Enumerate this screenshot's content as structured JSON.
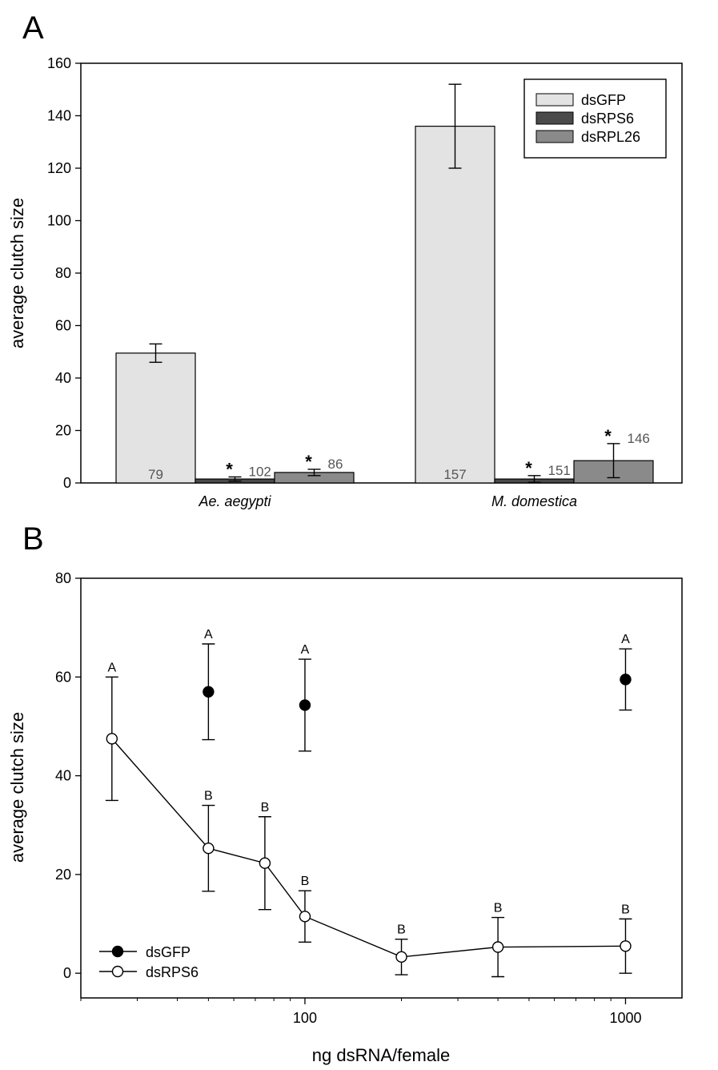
{
  "chart_data": [
    {
      "panel": "A",
      "type": "bar",
      "title": "",
      "xlabel": "",
      "ylabel": "average clutch size",
      "ylim": [
        0,
        160
      ],
      "yticks": [
        "0",
        "20",
        "40",
        "60",
        "80",
        "100",
        "120",
        "140",
        "160"
      ],
      "categories": [
        "Ae. aegypti",
        "M. domestica"
      ],
      "series": [
        {
          "name": "dsGFP",
          "color": "#e3e3e3",
          "values": [
            49.5,
            136
          ],
          "errors": [
            3.5,
            16
          ],
          "n": [
            "79",
            "157"
          ],
          "stars": [
            "",
            ""
          ]
        },
        {
          "name": "dsRPS6",
          "color": "#4a4a4a",
          "values": [
            1.5,
            1.5
          ],
          "errors": [
            0.8,
            1.3
          ],
          "n": [
            "102",
            "151"
          ],
          "stars": [
            "*",
            "*"
          ]
        },
        {
          "name": "dsRPL26",
          "color": "#8a8a8a",
          "values": [
            4,
            8.5
          ],
          "errors": [
            1.2,
            6.5
          ],
          "n": [
            "86",
            "146"
          ],
          "stars": [
            "*",
            "*"
          ]
        }
      ],
      "legend": {
        "position": "top-right",
        "entries": [
          "dsGFP",
          "dsRPS6",
          "dsRPL26"
        ]
      }
    },
    {
      "panel": "B",
      "type": "line",
      "title": "",
      "xlabel": "ng dsRNA/female",
      "ylabel": "average clutch size",
      "xscale": "log",
      "xlim": [
        20,
        1500
      ],
      "ylim": [
        -5,
        80
      ],
      "xticks": [
        {
          "value": 100,
          "label": "100"
        },
        {
          "value": 1000,
          "label": "1000"
        }
      ],
      "yticks": [
        "0",
        "20",
        "40",
        "60",
        "80"
      ],
      "series": [
        {
          "name": "dsGFP",
          "marker": "filled-circle",
          "line": false,
          "x": [
            50,
            100,
            1000
          ],
          "y": [
            57,
            54.3,
            59.5
          ],
          "err": [
            9.7,
            9.3,
            6.2
          ],
          "labels": [
            "A",
            "A",
            "A"
          ]
        },
        {
          "name": "dsRPS6",
          "marker": "open-circle",
          "line": true,
          "x": [
            25,
            50,
            75,
            100,
            200,
            400,
            1000
          ],
          "y": [
            47.5,
            25.3,
            22.3,
            11.5,
            3.3,
            5.3,
            5.5
          ],
          "err": [
            12.5,
            8.7,
            9.4,
            5.2,
            3.6,
            6.0,
            5.5
          ],
          "labels": [
            "A",
            "B",
            "B",
            "B",
            "B",
            "B",
            "B"
          ]
        }
      ],
      "legend": {
        "position": "bottom-left",
        "entries": [
          "dsGFP",
          "dsRPS6"
        ]
      }
    }
  ],
  "panels": {
    "a_letter": "A",
    "b_letter": "B"
  }
}
